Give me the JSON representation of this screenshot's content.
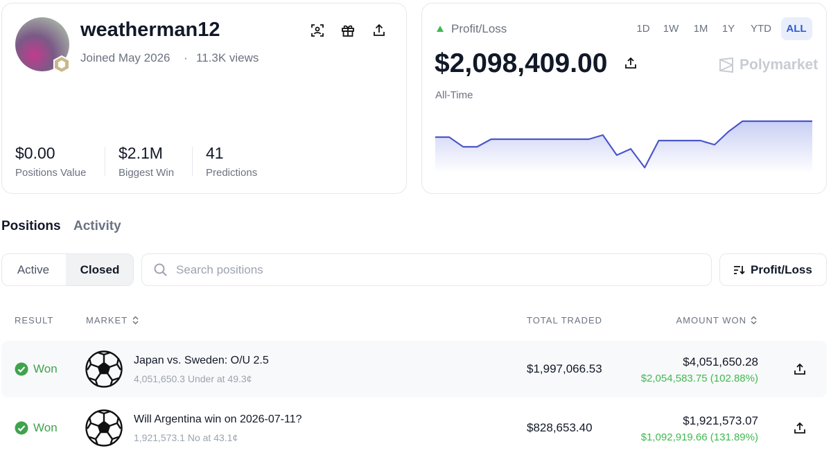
{
  "profile": {
    "username": "weatherman12",
    "joined": "Joined May 2026",
    "separator": "·",
    "views": "11.3K views",
    "stats": [
      {
        "value": "$0.00",
        "label": "Positions Value"
      },
      {
        "value": "$2.1M",
        "label": "Biggest Win"
      },
      {
        "value": "41",
        "label": "Predictions"
      }
    ]
  },
  "pnl": {
    "label": "Profit/Loss",
    "ranges": [
      "1D",
      "1W",
      "1M",
      "1Y",
      "YTD",
      "ALL"
    ],
    "active_range": 5,
    "amount": "$2,098,409.00",
    "brand": "Polymarket",
    "period": "All-Time",
    "chart": {
      "type": "line",
      "color": "#4b56c9",
      "values": [
        1455000,
        1455000,
        1063000,
        1063000,
        1371000,
        1371000,
        1371000,
        1371000,
        1371000,
        1371000,
        1371000,
        1371000,
        1539000,
        727000,
        979000,
        224000,
        1315000,
        1315000,
        1315000,
        1315000,
        1147000,
        1679000,
        2098409,
        2098409,
        2098409,
        2098409,
        2098409,
        2098409
      ]
    }
  },
  "tabs": [
    "Positions",
    "Activity"
  ],
  "filters": [
    "Active",
    "Closed"
  ],
  "search_placeholder": "Search positions",
  "sort_label": "Profit/Loss",
  "table": {
    "headers": [
      "RESULT",
      "MARKET",
      "TOTAL TRADED",
      "AMOUNT WON"
    ],
    "rows": [
      {
        "result": "Won",
        "market": "Japan vs. Sweden: O/U 2.5",
        "detail": "4,051,650.3 Under at 49.3¢",
        "total_traded": "$1,997,066.53",
        "amount_won": "$4,051,650.28",
        "profit": "$2,054,583.75 (102.88%)"
      },
      {
        "result": "Won",
        "market": "Will Argentina win on 2026-07-11?",
        "detail": "1,921,573.1 No at 43.1¢",
        "total_traded": "$828,653.40",
        "amount_won": "$1,921,573.07",
        "profit": "$1,092,919.66 (131.89%)"
      }
    ]
  }
}
